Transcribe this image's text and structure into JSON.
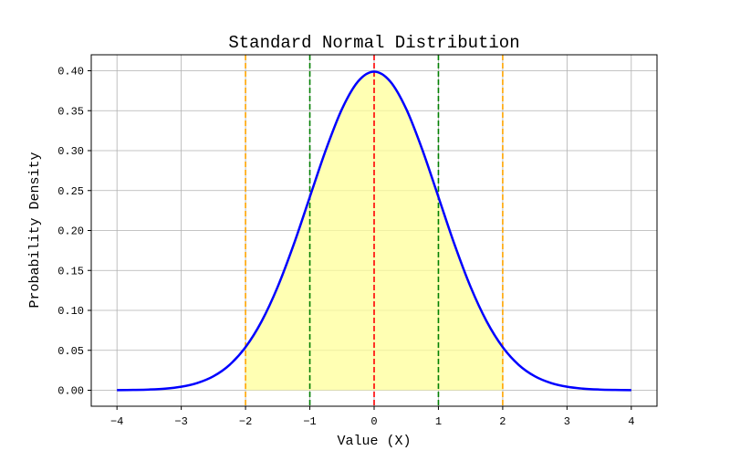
{
  "chart_data": {
    "type": "line",
    "title": "Standard Normal Distribution",
    "xlabel": "Value (X)",
    "ylabel": "Probability Density",
    "xlim": [
      -4.4,
      4.4
    ],
    "ylim": [
      -0.02,
      0.42
    ],
    "grid": true,
    "xticks": [
      -4,
      -3,
      -2,
      -1,
      0,
      1,
      2,
      3,
      4
    ],
    "xtick_labels": [
      "−4",
      "−3",
      "−2",
      "−1",
      "0",
      "1",
      "2",
      "3",
      "4"
    ],
    "yticks": [
      0,
      0.05,
      0.1,
      0.15,
      0.2,
      0.25,
      0.3,
      0.35,
      0.4
    ],
    "ytick_labels": [
      "0.00",
      "0.05",
      "0.10",
      "0.15",
      "0.20",
      "0.25",
      "0.30",
      "0.35",
      "0.40"
    ],
    "series": [
      {
        "color": "#0000ff",
        "x": [
          -4,
          -3.75,
          -3.5,
          -3.25,
          -3,
          -2.75,
          -2.5,
          -2.25,
          -2,
          -1.75,
          -1.5,
          -1.25,
          -1,
          -0.75,
          -0.5,
          -0.25,
          0,
          0.25,
          0.5,
          0.75,
          1,
          1.25,
          1.5,
          1.75,
          2,
          2.25,
          2.5,
          2.75,
          3,
          3.25,
          3.5,
          3.75,
          4
        ],
        "y": [
          0.0001,
          0.0004,
          0.0009,
          0.002,
          0.0044,
          0.0091,
          0.0175,
          0.0317,
          0.054,
          0.0863,
          0.1295,
          0.1826,
          0.242,
          0.3011,
          0.3521,
          0.3867,
          0.3989,
          0.3867,
          0.3521,
          0.3011,
          0.242,
          0.1826,
          0.1295,
          0.0863,
          0.054,
          0.0317,
          0.0175,
          0.0091,
          0.0044,
          0.002,
          0.0009,
          0.0004,
          0.0001
        ]
      }
    ],
    "shaded_region": {
      "from": -2,
      "to": 2,
      "color": "#ffff99"
    },
    "vertical_lines": [
      {
        "x": 0,
        "color": "#ff0000",
        "style": "dashed"
      },
      {
        "x": -1,
        "color": "#008000",
        "style": "dashed"
      },
      {
        "x": 1,
        "color": "#008000",
        "style": "dashed"
      },
      {
        "x": -2,
        "color": "#ffa500",
        "style": "dashed"
      },
      {
        "x": 2,
        "color": "#ffa500",
        "style": "dashed"
      }
    ]
  }
}
